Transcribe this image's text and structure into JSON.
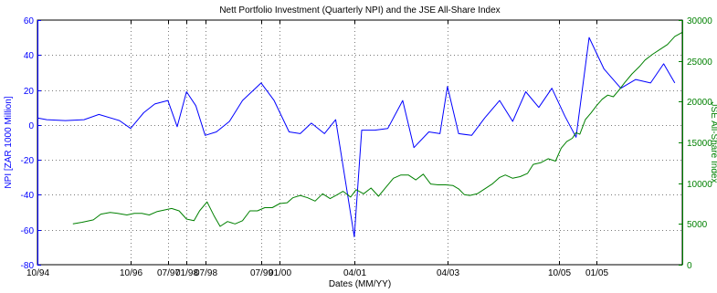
{
  "chart_data": {
    "type": "line",
    "title": "Nett Portfolio Investment (Quarterly NPI) and the JSE All-Share Index",
    "xlabel": "Dates (MM/YY)",
    "ylabel_left": "NPI [ZAR 1000 Million]",
    "ylabel_right": "JSE All-Share Index",
    "x_tick_labels": [
      "10/94",
      "10/96",
      "07/97",
      "01/98",
      "07/98",
      "07/99",
      "01/00",
      "04/01",
      "04/03",
      "10/05",
      "01/05"
    ],
    "x_tick_t": [
      0,
      5,
      7,
      8,
      9,
      12,
      13,
      17,
      22,
      28,
      30
    ],
    "xlim": [
      0,
      34.6
    ],
    "ylim_left": [
      -80,
      60
    ],
    "yticks_left": [
      -80,
      -60,
      -40,
      -20,
      0,
      20,
      40,
      60
    ],
    "ylim_right": [
      0,
      30000
    ],
    "yticks_right": [
      0,
      5000,
      10000,
      15000,
      20000,
      25000,
      30000
    ],
    "grid": true,
    "colors": {
      "npi": "#0000ff",
      "jse": "#008000",
      "text": "#000000",
      "axis_left": "#0000ff",
      "axis_right": "#008000"
    },
    "series": [
      {
        "axis": "left",
        "color": "#0000ff",
        "points": [
          [
            0,
            4
          ],
          [
            0.5,
            3
          ],
          [
            1.5,
            2.5
          ],
          [
            2.5,
            3
          ],
          [
            3.3,
            6
          ],
          [
            4.4,
            2.5
          ],
          [
            5,
            -2
          ],
          [
            5.7,
            7
          ],
          [
            6.3,
            12
          ],
          [
            7,
            14
          ],
          [
            7.5,
            -1
          ],
          [
            8,
            19
          ],
          [
            8.5,
            11
          ],
          [
            9,
            -6
          ],
          [
            9.6,
            -4
          ],
          [
            10.3,
            2
          ],
          [
            11,
            14
          ],
          [
            12,
            24
          ],
          [
            12.7,
            14
          ],
          [
            13.5,
            -4
          ],
          [
            14.1,
            -5
          ],
          [
            14.7,
            1
          ],
          [
            15.4,
            -5
          ],
          [
            16,
            3
          ],
          [
            17,
            -64
          ],
          [
            17.4,
            -3
          ],
          [
            18.1,
            -3
          ],
          [
            18.8,
            -2
          ],
          [
            19.6,
            14
          ],
          [
            20.2,
            -13
          ],
          [
            21,
            -4
          ],
          [
            21.6,
            -5
          ],
          [
            22,
            22
          ],
          [
            22.6,
            -5
          ],
          [
            23.3,
            -6
          ],
          [
            24,
            4
          ],
          [
            24.8,
            14
          ],
          [
            25.5,
            2
          ],
          [
            26.2,
            19
          ],
          [
            26.9,
            10
          ],
          [
            27.6,
            21
          ],
          [
            28.3,
            5
          ],
          [
            28.9,
            -7
          ],
          [
            29.6,
            50
          ],
          [
            30.4,
            32
          ],
          [
            31.3,
            21
          ],
          [
            32.1,
            26
          ],
          [
            32.9,
            24
          ],
          [
            33.6,
            35
          ],
          [
            34.2,
            24
          ]
        ]
      },
      {
        "axis": "right",
        "color": "#008000",
        "points": [
          [
            1.9,
            5000
          ],
          [
            2.4,
            5200
          ],
          [
            3,
            5500
          ],
          [
            3.4,
            6200
          ],
          [
            3.9,
            6400
          ],
          [
            4.3,
            6300
          ],
          [
            4.8,
            6100
          ],
          [
            5.2,
            6300
          ],
          [
            5.6,
            6300
          ],
          [
            6,
            6100
          ],
          [
            6.4,
            6500
          ],
          [
            6.8,
            6700
          ],
          [
            7.2,
            6900
          ],
          [
            7.6,
            6600
          ],
          [
            8,
            5600
          ],
          [
            8.4,
            5400
          ],
          [
            8.7,
            6600
          ],
          [
            9.1,
            7700
          ],
          [
            9.5,
            5900
          ],
          [
            9.8,
            4700
          ],
          [
            10.2,
            5300
          ],
          [
            10.6,
            5000
          ],
          [
            11,
            5400
          ],
          [
            11.4,
            6600
          ],
          [
            11.8,
            6600
          ],
          [
            12.2,
            7000
          ],
          [
            12.6,
            7000
          ],
          [
            13,
            7500
          ],
          [
            13.4,
            7600
          ],
          [
            13.7,
            8200
          ],
          [
            14.1,
            8500
          ],
          [
            14.5,
            8200
          ],
          [
            14.9,
            7800
          ],
          [
            15.3,
            8700
          ],
          [
            15.7,
            8100
          ],
          [
            16.1,
            8600
          ],
          [
            16.4,
            9000
          ],
          [
            16.8,
            8300
          ],
          [
            17.1,
            9200
          ],
          [
            17.5,
            8700
          ],
          [
            17.9,
            9400
          ],
          [
            18.3,
            8400
          ],
          [
            18.7,
            9500
          ],
          [
            19.1,
            10600
          ],
          [
            19.5,
            11000
          ],
          [
            19.9,
            11000
          ],
          [
            20.3,
            10400
          ],
          [
            20.7,
            11100
          ],
          [
            21.1,
            9900
          ],
          [
            21.5,
            9800
          ],
          [
            21.9,
            9800
          ],
          [
            22.3,
            9700
          ],
          [
            22.6,
            9300
          ],
          [
            22.9,
            8600
          ],
          [
            23.2,
            8500
          ],
          [
            23.6,
            8700
          ],
          [
            24,
            9300
          ],
          [
            24.4,
            9900
          ],
          [
            24.8,
            10700
          ],
          [
            25.1,
            11000
          ],
          [
            25.5,
            10600
          ],
          [
            25.9,
            10800
          ],
          [
            26.3,
            11200
          ],
          [
            26.6,
            12300
          ],
          [
            27,
            12500
          ],
          [
            27.4,
            13000
          ],
          [
            27.8,
            12700
          ],
          [
            28.1,
            14300
          ],
          [
            28.4,
            15100
          ],
          [
            28.7,
            15500
          ],
          [
            28.9,
            16200
          ],
          [
            29.1,
            16000
          ],
          [
            29.4,
            17800
          ],
          [
            29.7,
            18600
          ],
          [
            30,
            19500
          ],
          [
            30.3,
            20300
          ],
          [
            30.6,
            20800
          ],
          [
            30.9,
            20600
          ],
          [
            31.2,
            21400
          ],
          [
            31.5,
            22300
          ],
          [
            31.9,
            23400
          ],
          [
            32.3,
            24300
          ],
          [
            32.6,
            25100
          ],
          [
            33,
            25800
          ],
          [
            33.4,
            26400
          ],
          [
            33.8,
            27000
          ],
          [
            34.2,
            28000
          ],
          [
            34.6,
            28500
          ]
        ]
      }
    ]
  }
}
